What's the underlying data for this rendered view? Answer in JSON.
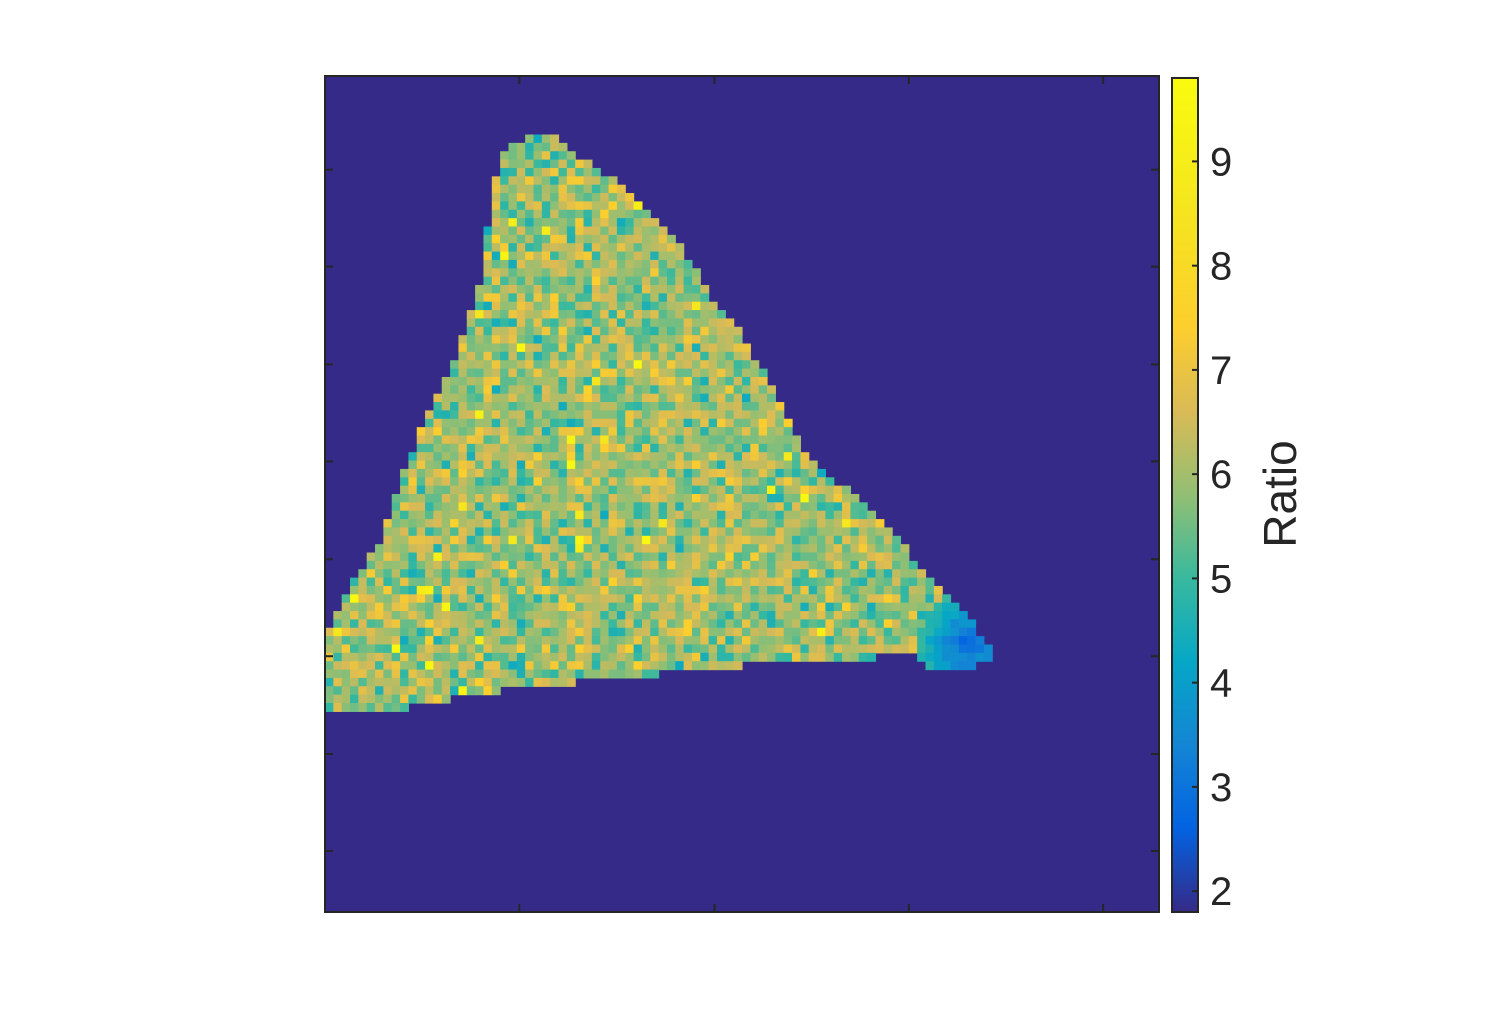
{
  "chart_data": {
    "type": "heatmap",
    "title": "",
    "xlabel": "",
    "ylabel": "",
    "grid": false,
    "colormap": "parula",
    "background_value": 1.8,
    "grid_size": [
      100,
      100
    ],
    "region_polygon_grid": [
      [
        0,
        87
      ],
      [
        0,
        67
      ],
      [
        3,
        61
      ],
      [
        7,
        55
      ],
      [
        10,
        46
      ],
      [
        13,
        39
      ],
      [
        16,
        33
      ],
      [
        19,
        23
      ],
      [
        20,
        13
      ],
      [
        22,
        8
      ],
      [
        27,
        7
      ],
      [
        31,
        10
      ],
      [
        36,
        13
      ],
      [
        42,
        19
      ],
      [
        46,
        26
      ],
      [
        50,
        31
      ],
      [
        53,
        36
      ],
      [
        56,
        42
      ],
      [
        59,
        47
      ],
      [
        65,
        51
      ],
      [
        70,
        57
      ],
      [
        75,
        62
      ],
      [
        78,
        66
      ],
      [
        80,
        69
      ],
      [
        80,
        70
      ],
      [
        76,
        71
      ],
      [
        73,
        71
      ],
      [
        70,
        69
      ],
      [
        63,
        70
      ],
      [
        55,
        70
      ],
      [
        45,
        71
      ],
      [
        35,
        72
      ],
      [
        25,
        73
      ],
      [
        18,
        74
      ],
      [
        12,
        75
      ],
      [
        8,
        76
      ],
      [
        0,
        76
      ]
    ],
    "low_corner_grid": [
      77,
      68
    ],
    "main_region_range": [
      4.3,
      7.6
    ],
    "colorbar": {
      "label": "Ratio",
      "range": [
        1.8,
        9.8
      ],
      "ticks": [
        "2",
        "3",
        "4",
        "5",
        "6",
        "7",
        "8",
        "9"
      ]
    }
  }
}
